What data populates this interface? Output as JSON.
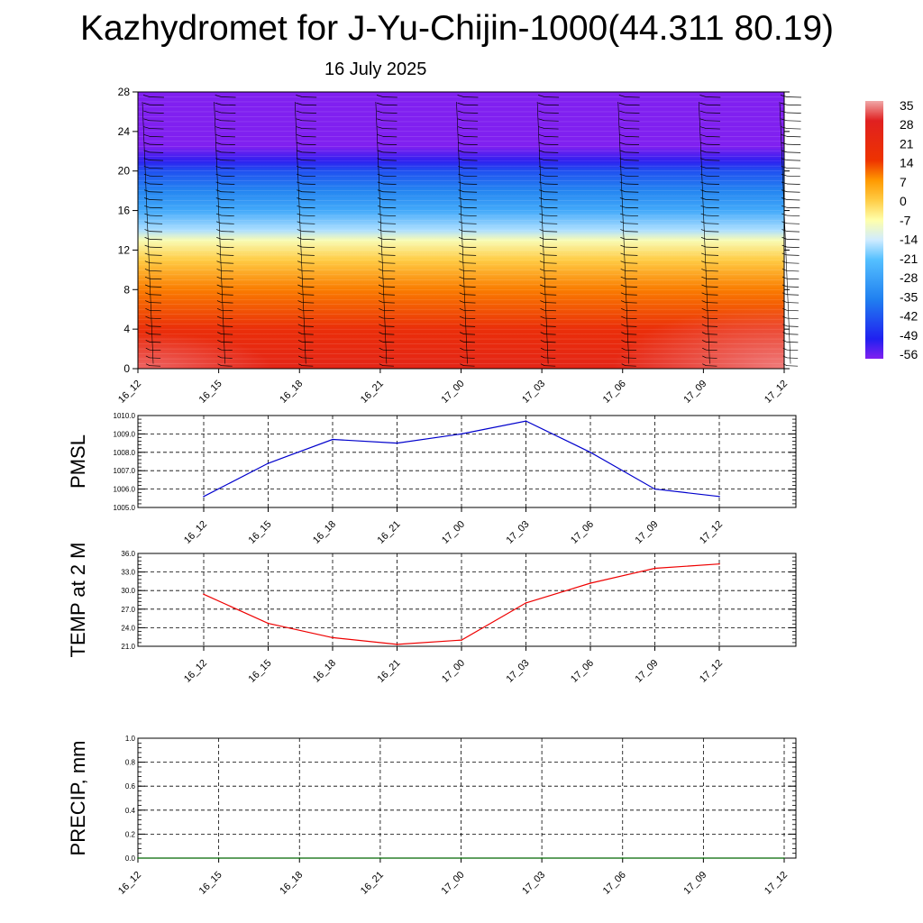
{
  "title": "Kazhydromet for J-Yu-Chijin-1000(44.311 80.19)",
  "date": "16 July 2025",
  "chart_data": [
    {
      "type": "heatmap",
      "name": "temperature-height",
      "x_categories": [
        "16_12",
        "16_15",
        "16_18",
        "16_21",
        "17_00",
        "17_03",
        "17_06",
        "17_09",
        "17_12"
      ],
      "y_ticks": [
        0,
        4,
        8,
        12,
        16,
        20,
        24,
        28
      ],
      "ylim": [
        0,
        28
      ],
      "colorbar": {
        "labels": [
          "35",
          "28",
          "21",
          "14",
          "7",
          "0",
          "-7",
          "-14",
          "-21",
          "-28",
          "-35",
          "-42",
          "-49",
          "-56"
        ],
        "stops": [
          {
            "value": 35,
            "color": "#f0a8a8"
          },
          {
            "value": 28,
            "color": "#e02020"
          },
          {
            "value": 14,
            "color": "#ee3300"
          },
          {
            "value": 7,
            "color": "#ff9900"
          },
          {
            "value": 0,
            "color": "#ffcc44"
          },
          {
            "value": -7,
            "color": "#ffffaa"
          },
          {
            "value": -14,
            "color": "#d0ecff"
          },
          {
            "value": -21,
            "color": "#55c0ff"
          },
          {
            "value": -35,
            "color": "#2080f0"
          },
          {
            "value": -49,
            "color": "#2020f0"
          },
          {
            "value": -56,
            "color": "#8020f0"
          }
        ]
      },
      "vertical_profile": [
        {
          "height": 0,
          "temp": 24
        },
        {
          "height": 4,
          "temp": 18
        },
        {
          "height": 8,
          "temp": 9
        },
        {
          "height": 11,
          "temp": 0
        },
        {
          "height": 13,
          "temp": -8
        },
        {
          "height": 14,
          "temp": -16
        },
        {
          "height": 16,
          "temp": -26
        },
        {
          "height": 18,
          "temp": -34
        },
        {
          "height": 20,
          "temp": -42
        },
        {
          "height": 21,
          "temp": -50
        },
        {
          "height": 22.5,
          "temp": -56
        },
        {
          "height": 28,
          "temp": -58
        }
      ]
    },
    {
      "type": "line",
      "name": "pmsl",
      "ylabel": "PMSL",
      "x": [
        "16_12",
        "16_15",
        "16_18",
        "16_21",
        "17_00",
        "17_03",
        "17_06",
        "17_09",
        "17_12"
      ],
      "values": [
        1005.6,
        1007.4,
        1008.7,
        1008.5,
        1009.0,
        1009.7,
        1008.0,
        1006.0,
        1005.6
      ],
      "y_ticks": [
        "1005.0",
        "1006.0",
        "1007.0",
        "1008.0",
        "1009.0",
        "1010.0"
      ],
      "ylim": [
        1005,
        1010
      ],
      "color": "#0000cc",
      "grid": true
    },
    {
      "type": "line",
      "name": "temp2m",
      "ylabel": "TEMP at 2 M",
      "x": [
        "16_12",
        "16_15",
        "16_18",
        "16_21",
        "17_00",
        "17_03",
        "17_06",
        "17_09",
        "17_12"
      ],
      "values": [
        29.4,
        24.7,
        22.4,
        21.3,
        22.0,
        28.0,
        31.2,
        33.6,
        34.3
      ],
      "y_ticks": [
        "21.0",
        "24.0",
        "27.0",
        "30.0",
        "33.0",
        "36.0"
      ],
      "ylim": [
        21,
        36
      ],
      "color": "#ee0000",
      "grid": true
    },
    {
      "type": "line",
      "name": "precip",
      "ylabel": "PRECIP, mm",
      "x": [
        "16_12",
        "16_15",
        "16_18",
        "16_21",
        "17_00",
        "17_03",
        "17_06",
        "17_09",
        "17_12"
      ],
      "values": [
        0,
        0,
        0,
        0,
        0,
        0,
        0,
        0,
        0
      ],
      "y_ticks": [
        "0.0",
        "0.2",
        "0.4",
        "0.6",
        "0.8",
        "1.0"
      ],
      "ylim": [
        0,
        1
      ],
      "color": "#006600",
      "grid": true
    }
  ]
}
